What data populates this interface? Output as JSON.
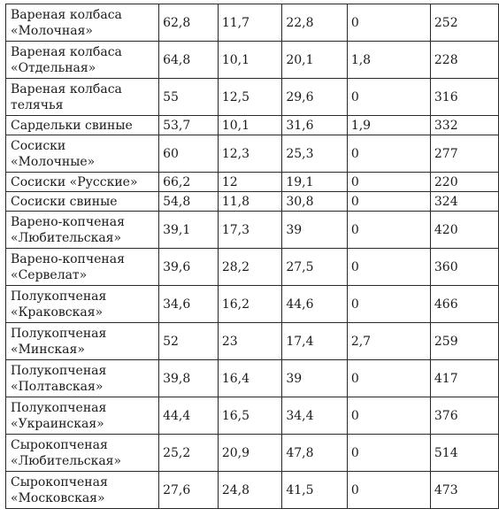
{
  "rows": [
    {
      "name": [
        "Вареная колбаса",
        "«Молочная»"
      ],
      "v": [
        "62,8",
        "11,7",
        "22,8",
        "0",
        "252"
      ]
    },
    {
      "name": [
        "Вареная колбаса",
        "«Отдельная»"
      ],
      "v": [
        "64,8",
        "10,1",
        "20,1",
        "1,8",
        "228"
      ]
    },
    {
      "name": [
        "Вареная колбаса",
        "телячья"
      ],
      "v": [
        "55",
        "12,5",
        "29,6",
        "0",
        "316"
      ]
    },
    {
      "name": [
        "Сардельки свиные"
      ],
      "v": [
        "53,7",
        "10,1",
        "31,6",
        "1,9",
        "332"
      ]
    },
    {
      "name": [
        "Сосиски",
        "«Молочные»"
      ],
      "v": [
        "60",
        "12,3",
        "25,3",
        "0",
        "277"
      ]
    },
    {
      "name": [
        "Сосиски «Русские»"
      ],
      "v": [
        "66,2",
        "12",
        "19,1",
        "0",
        "220"
      ]
    },
    {
      "name": [
        "Сосиски свиные"
      ],
      "v": [
        "54,8",
        "11,8",
        "30,8",
        "0",
        "324"
      ]
    },
    {
      "name": [
        "Варено-копченая",
        "«Любительская»"
      ],
      "v": [
        "39,1",
        "17,3",
        "39",
        "0",
        "420"
      ]
    },
    {
      "name": [
        "Варено-копченая",
        "«Сервелат»"
      ],
      "v": [
        "39,6",
        "28,2",
        "27,5",
        "0",
        "360"
      ]
    },
    {
      "name": [
        "Полукопченая",
        "«Краковская»"
      ],
      "v": [
        "34,6",
        "16,2",
        "44,6",
        "0",
        "466"
      ]
    },
    {
      "name": [
        "Полукопченая",
        "«Минская»"
      ],
      "v": [
        "52",
        "23",
        "17,4",
        "2,7",
        "259"
      ]
    },
    {
      "name": [
        "Полукопченая",
        "«Полтавская»"
      ],
      "v": [
        "39,8",
        "16,4",
        "39",
        "0",
        "417"
      ]
    },
    {
      "name": [
        "Полукопченая",
        "«Украинская»"
      ],
      "v": [
        "44,4",
        "16,5",
        "34,4",
        "0",
        "376"
      ]
    },
    {
      "name": [
        "Сырокопченая",
        "«Любительская»"
      ],
      "v": [
        "25,2",
        "20,9",
        "47,8",
        "0",
        "514"
      ]
    },
    {
      "name": [
        "Сырокопченая",
        "«Московская»"
      ],
      "v": [
        "27,6",
        "24,8",
        "41,5",
        "0",
        "473"
      ]
    }
  ]
}
